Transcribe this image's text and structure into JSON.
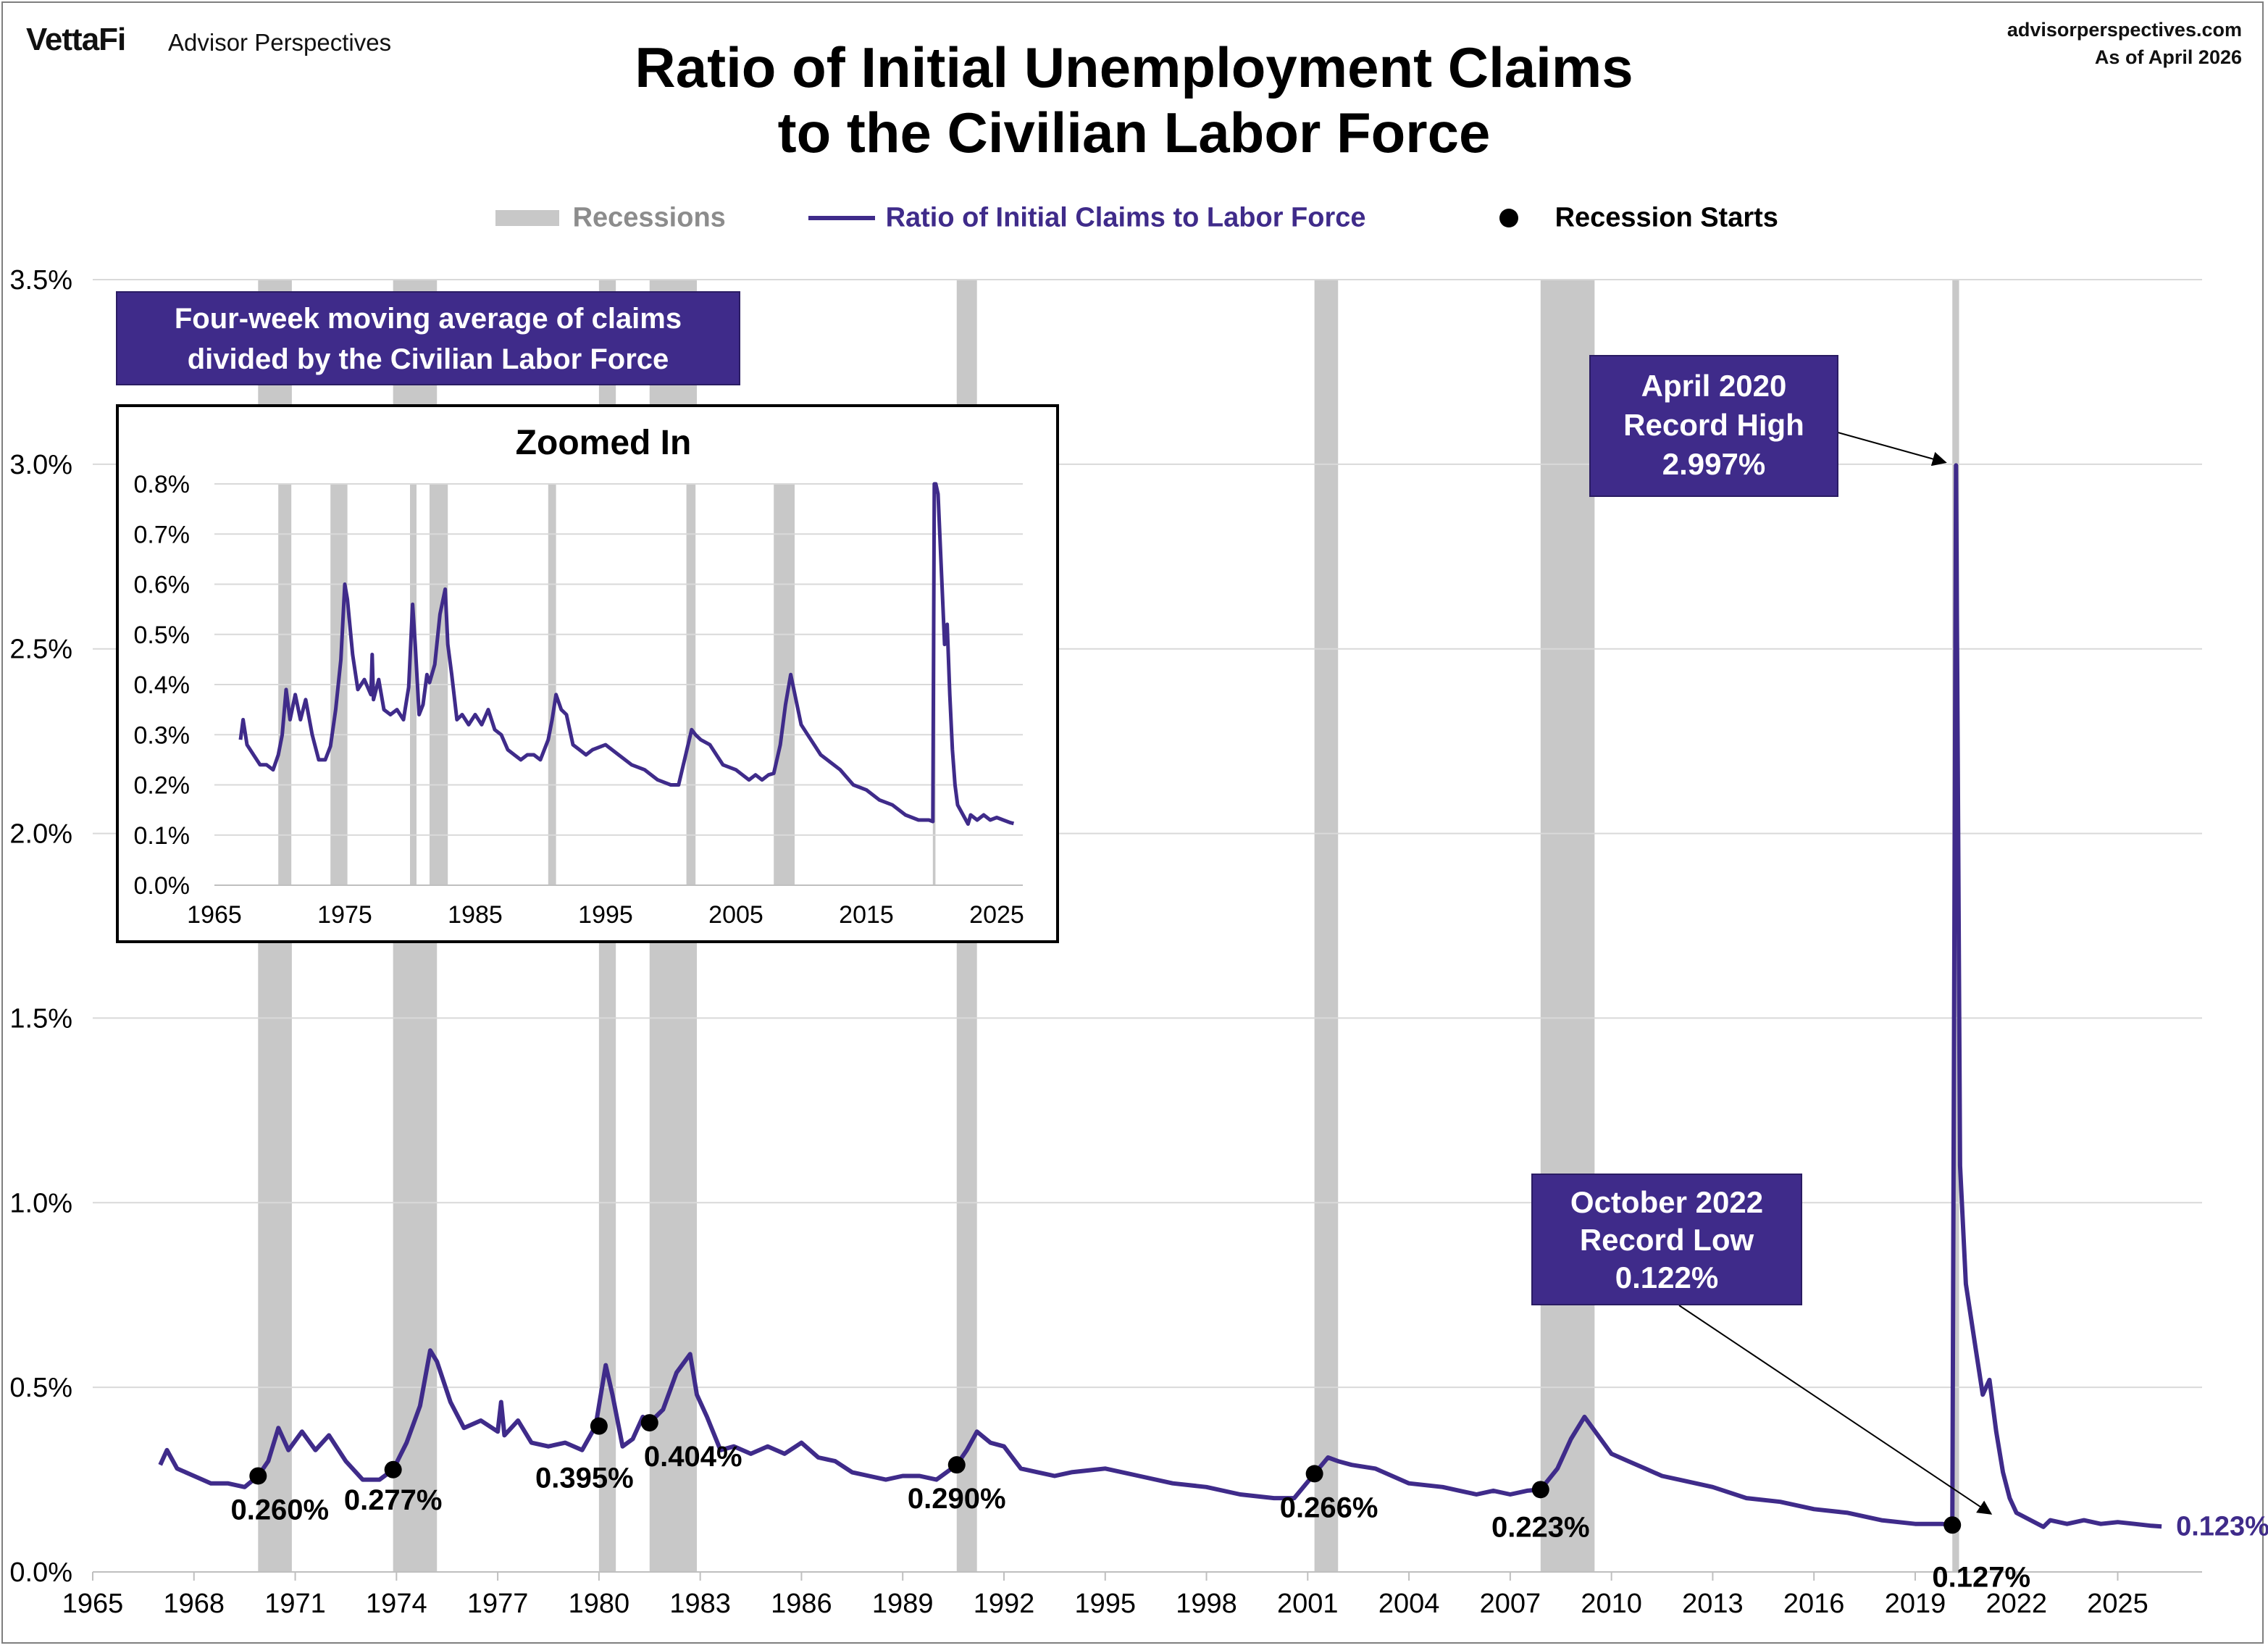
{
  "header": {
    "brand": "VettaFi",
    "brand_sub": "Advisor Perspectives",
    "site": "advisorperspectives.com",
    "as_of": "As of April 2026"
  },
  "colors": {
    "line": "#3f2b8a",
    "recession": "#c8c8c8",
    "grid": "#d9d9d9",
    "box": "#3f2b8a"
  },
  "chart_data": [
    {
      "type": "line",
      "title": "Ratio of Initial Unemployment Claims to the Civilian Labor Force",
      "title_lines": [
        "Ratio of Initial Unemployment Claims",
        "to the Civilian Labor Force"
      ],
      "legend": [
        "Recessions",
        "Ratio of Initial Claims to Labor Force",
        "Recession Starts"
      ],
      "xlim": [
        1965,
        2027.5
      ],
      "ylim": [
        0,
        3.5
      ],
      "y_ticks": [
        "0.0%",
        "0.5%",
        "1.0%",
        "1.5%",
        "2.0%",
        "2.5%",
        "3.0%",
        "3.5%"
      ],
      "x_ticks": [
        "1965",
        "1968",
        "1971",
        "1974",
        "1977",
        "1980",
        "1983",
        "1986",
        "1989",
        "1992",
        "1995",
        "1998",
        "2001",
        "2004",
        "2007",
        "2010",
        "2013",
        "2016",
        "2019",
        "2022",
        "2025"
      ],
      "recessions": [
        [
          1969.9,
          1970.9
        ],
        [
          1973.9,
          1975.2
        ],
        [
          1980.0,
          1980.5
        ],
        [
          1981.5,
          1982.9
        ],
        [
          1990.6,
          1991.2
        ],
        [
          2001.2,
          2001.9
        ],
        [
          2007.9,
          2009.5
        ],
        [
          2020.1,
          2020.3
        ]
      ],
      "series": {
        "name": "Ratio of Initial Claims to Labor Force",
        "x": [
          1967.0,
          1967.2,
          1967.5,
          1968.0,
          1968.5,
          1969.0,
          1969.5,
          1969.9,
          1970.2,
          1970.5,
          1970.8,
          1971.2,
          1971.6,
          1972.0,
          1972.5,
          1973.0,
          1973.5,
          1973.9,
          1974.3,
          1974.7,
          1975.0,
          1975.2,
          1975.6,
          1976.0,
          1976.5,
          1977.0,
          1977.1,
          1977.2,
          1977.6,
          1978.0,
          1978.5,
          1979.0,
          1979.5,
          1979.9,
          1980.2,
          1980.4,
          1980.7,
          1981.0,
          1981.3,
          1981.5,
          1981.9,
          1982.3,
          1982.7,
          1982.9,
          1983.2,
          1983.6,
          1984.0,
          1984.5,
          1985.0,
          1985.5,
          1986.0,
          1986.5,
          1987.0,
          1987.5,
          1988.0,
          1988.5,
          1989.0,
          1989.5,
          1990.0,
          1990.6,
          1990.9,
          1991.2,
          1991.6,
          1992.0,
          1992.5,
          1993.0,
          1993.5,
          1994.0,
          1995.0,
          1996.0,
          1997.0,
          1998.0,
          1999.0,
          2000.0,
          2000.6,
          2001.2,
          2001.6,
          2001.9,
          2002.3,
          2003.0,
          2003.5,
          2004.0,
          2005.0,
          2005.5,
          2006.0,
          2006.5,
          2007.0,
          2007.5,
          2007.9,
          2008.4,
          2008.8,
          2009.2,
          2009.6,
          2010.0,
          2010.5,
          2011.0,
          2011.5,
          2012.0,
          2013.0,
          2014.0,
          2015.0,
          2016.0,
          2017.0,
          2018.0,
          2019.0,
          2019.8,
          2020.1,
          2020.21,
          2020.26,
          2020.33,
          2020.5,
          2020.8,
          2021.0,
          2021.2,
          2021.4,
          2021.6,
          2021.8,
          2022.0,
          2022.8,
          2023.0,
          2023.5,
          2024.0,
          2024.5,
          2025.0,
          2025.5,
          2026.0,
          2026.3
        ],
        "values": [
          0.29,
          0.33,
          0.28,
          0.26,
          0.24,
          0.24,
          0.23,
          0.26,
          0.3,
          0.39,
          0.33,
          0.38,
          0.33,
          0.37,
          0.3,
          0.25,
          0.25,
          0.277,
          0.35,
          0.45,
          0.6,
          0.57,
          0.46,
          0.39,
          0.41,
          0.38,
          0.46,
          0.37,
          0.41,
          0.35,
          0.34,
          0.35,
          0.33,
          0.395,
          0.56,
          0.48,
          0.34,
          0.36,
          0.42,
          0.404,
          0.44,
          0.54,
          0.59,
          0.48,
          0.42,
          0.33,
          0.34,
          0.32,
          0.34,
          0.32,
          0.35,
          0.31,
          0.3,
          0.27,
          0.26,
          0.25,
          0.26,
          0.26,
          0.25,
          0.29,
          0.33,
          0.38,
          0.35,
          0.34,
          0.28,
          0.27,
          0.26,
          0.27,
          0.28,
          0.26,
          0.24,
          0.23,
          0.21,
          0.2,
          0.2,
          0.266,
          0.31,
          0.3,
          0.29,
          0.28,
          0.26,
          0.24,
          0.23,
          0.22,
          0.21,
          0.22,
          0.21,
          0.22,
          0.223,
          0.28,
          0.36,
          0.42,
          0.37,
          0.32,
          0.3,
          0.28,
          0.26,
          0.25,
          0.23,
          0.2,
          0.19,
          0.17,
          0.16,
          0.14,
          0.13,
          0.13,
          0.127,
          2.997,
          2.2,
          1.1,
          0.78,
          0.6,
          0.48,
          0.52,
          0.38,
          0.27,
          0.2,
          0.16,
          0.122,
          0.14,
          0.13,
          0.14,
          0.13,
          0.135,
          0.13,
          0.125,
          0.123
        ]
      },
      "recession_starts": [
        {
          "x": 1969.9,
          "y": 0.26,
          "label": "0.260%"
        },
        {
          "x": 1973.9,
          "y": 0.277,
          "label": "0.277%"
        },
        {
          "x": 1980.0,
          "y": 0.395,
          "label": "0.395%"
        },
        {
          "x": 1981.5,
          "y": 0.404,
          "label": "0.404%"
        },
        {
          "x": 1990.6,
          "y": 0.29,
          "label": "0.290%"
        },
        {
          "x": 2001.2,
          "y": 0.266,
          "label": "0.266%"
        },
        {
          "x": 2007.9,
          "y": 0.223,
          "label": "0.223%"
        },
        {
          "x": 2020.1,
          "y": 0.127,
          "label": "0.127%"
        }
      ],
      "annotations": [
        {
          "text": [
            "April 2020",
            "Record High",
            "2.997%"
          ],
          "x": 2020.2,
          "y": 2.997
        },
        {
          "text": [
            "October 2022",
            "Record Low",
            "0.122%"
          ],
          "x": 2020.3,
          "y": 0.122
        }
      ],
      "last_value_label": "0.123%",
      "note": [
        "Four-week moving average of claims",
        "divided by the Civilian Labor Force"
      ]
    },
    {
      "type": "line",
      "title": "Zoomed In",
      "xlim": [
        1965,
        2027
      ],
      "ylim": [
        0,
        0.8
      ],
      "y_ticks": [
        "0.0%",
        "0.1%",
        "0.2%",
        "0.3%",
        "0.4%",
        "0.5%",
        "0.6%",
        "0.7%",
        "0.8%"
      ],
      "x_ticks": [
        "1965",
        "1975",
        "1985",
        "1995",
        "2005",
        "2015",
        "2025"
      ],
      "clip_note": "series clipped at 0.8%"
    }
  ]
}
